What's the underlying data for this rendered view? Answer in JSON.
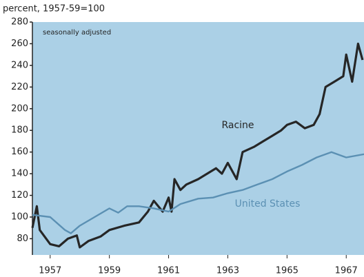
{
  "chart_data": {
    "type": "line",
    "subtitle": "percent, 1957-59=100",
    "annotation": "seasonally adjusted",
    "background": "#abd0e6",
    "xlim": [
      1956.4,
      1967.6
    ],
    "xticks": [
      1957,
      1959,
      1961,
      1963,
      1965,
      1967
    ],
    "ylim": [
      65,
      280
    ],
    "yticks": [
      80,
      100,
      120,
      140,
      160,
      180,
      200,
      220,
      240,
      260,
      280
    ],
    "series": [
      {
        "name": "Racine",
        "color": "#262626",
        "x": [
          1956.4,
          1956.55,
          1956.65,
          1957.0,
          1957.3,
          1957.6,
          1957.9,
          1958.0,
          1958.3,
          1958.7,
          1959.0,
          1959.5,
          1960.0,
          1960.3,
          1960.5,
          1960.8,
          1961.0,
          1961.1,
          1961.2,
          1961.4,
          1961.6,
          1962.0,
          1962.3,
          1962.6,
          1962.8,
          1963.0,
          1963.3,
          1963.5,
          1963.9,
          1964.2,
          1964.5,
          1964.8,
          1965.0,
          1965.3,
          1965.6,
          1965.9,
          1966.1,
          1966.3,
          1966.6,
          1966.9,
          1967.0,
          1967.2,
          1967.4,
          1967.55
        ],
        "values": [
          90,
          110,
          88,
          75,
          73,
          80,
          83,
          72,
          78,
          82,
          88,
          92,
          95,
          105,
          115,
          105,
          118,
          105,
          135,
          125,
          130,
          135,
          140,
          145,
          140,
          150,
          135,
          160,
          165,
          170,
          175,
          180,
          185,
          188,
          182,
          185,
          195,
          220,
          225,
          230,
          250,
          225,
          260,
          245
        ]
      },
      {
        "name": "United States",
        "color": "#5b90b3",
        "x": [
          1956.4,
          1957.0,
          1957.5,
          1957.7,
          1958.0,
          1958.5,
          1959.0,
          1959.3,
          1959.6,
          1960.0,
          1960.5,
          1961.0,
          1961.4,
          1962.0,
          1962.5,
          1963.0,
          1963.5,
          1964.0,
          1964.5,
          1965.0,
          1965.5,
          1966.0,
          1966.5,
          1967.0,
          1967.6
        ],
        "values": [
          102,
          100,
          88,
          85,
          92,
          100,
          108,
          104,
          110,
          110,
          108,
          105,
          112,
          117,
          118,
          122,
          125,
          130,
          135,
          142,
          148,
          155,
          160,
          155,
          158
        ]
      }
    ]
  }
}
